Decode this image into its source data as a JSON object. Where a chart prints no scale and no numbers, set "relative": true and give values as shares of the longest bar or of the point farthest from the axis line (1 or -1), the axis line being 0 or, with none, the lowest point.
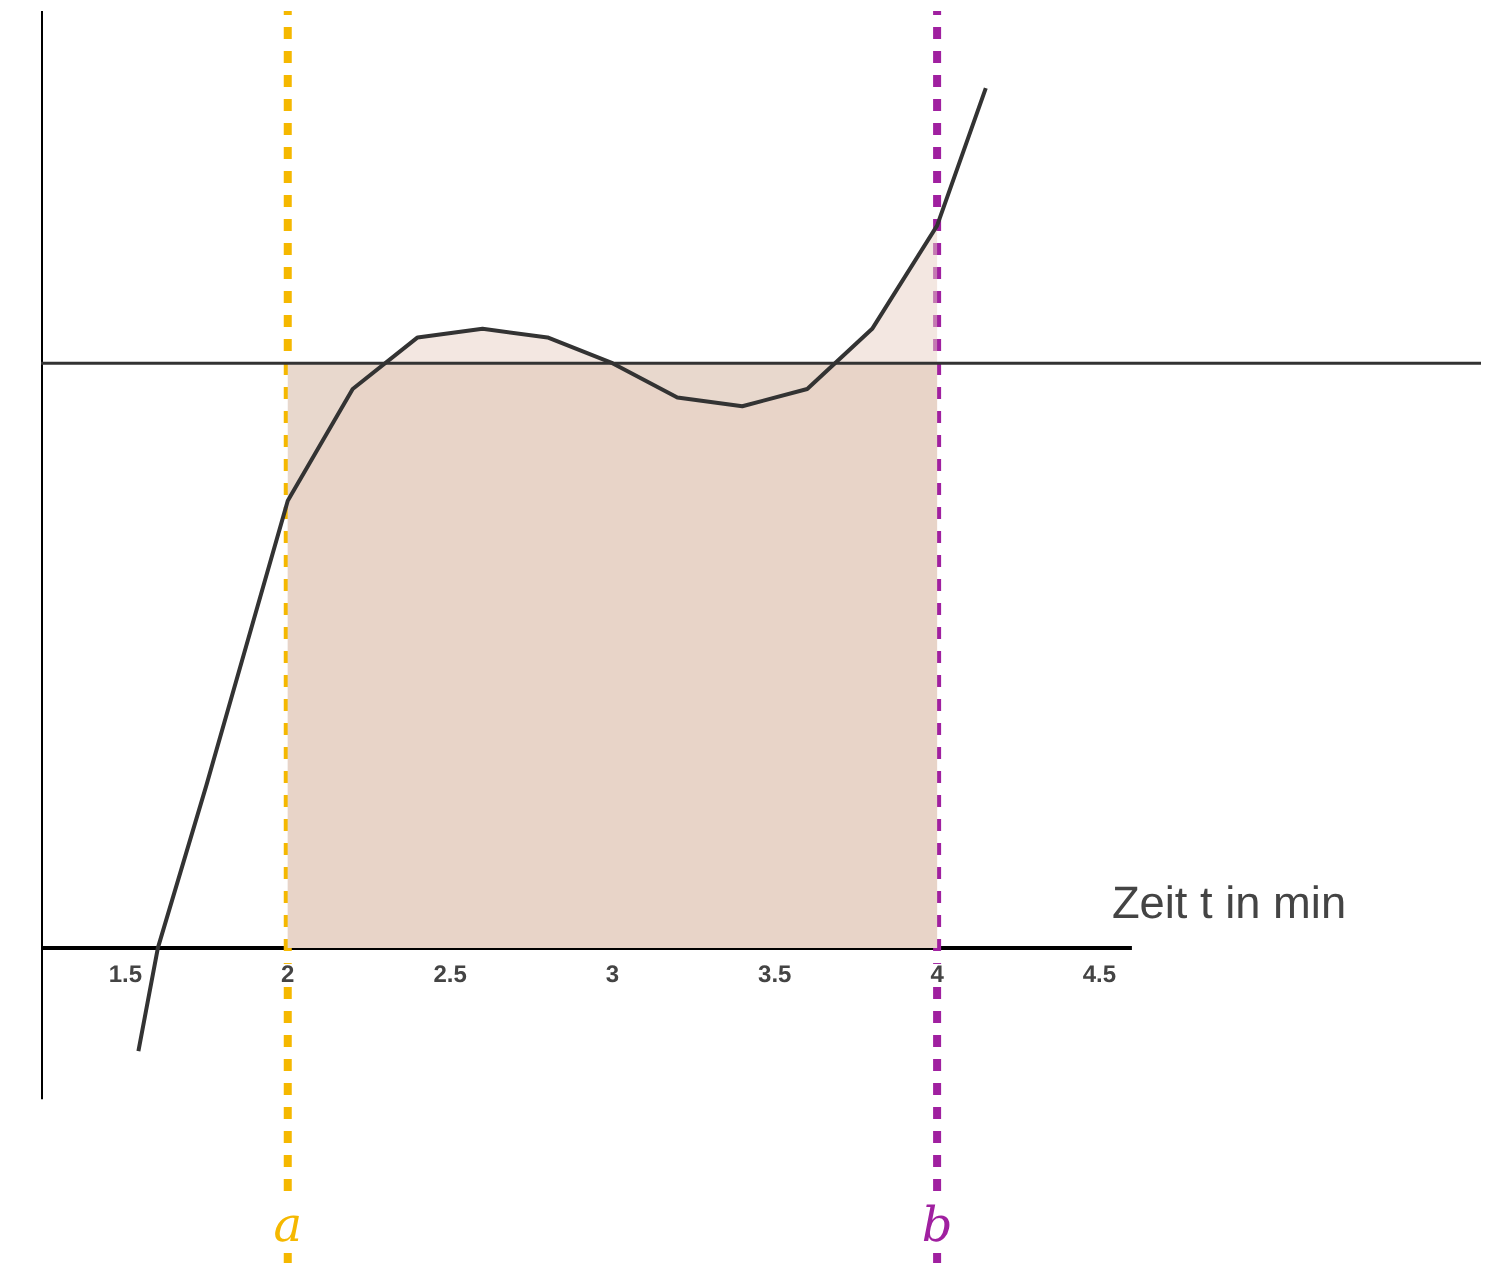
{
  "chart_data": {
    "type": "line",
    "relative": true,
    "xlabel": "Zeit t in min",
    "xlim": [
      1.24,
      4.6
    ],
    "xticks": [
      1.5,
      2,
      2.5,
      3,
      3.5,
      4,
      4.5
    ],
    "series": [
      {
        "type": "area",
        "color": "#e8d8cd",
        "x": [
          2,
          4
        ],
        "values": [
          0.68,
          0.68
        ]
      },
      {
        "type": "area",
        "color": "#e8d0c4",
        "x": [
          2.0,
          2.2,
          2.4,
          2.6,
          2.8,
          3.0,
          3.2,
          3.4,
          3.6,
          3.8,
          4.0
        ],
        "values": [
          0.52,
          0.65,
          0.71,
          0.72,
          0.71,
          0.68,
          0.64,
          0.63,
          0.65,
          0.72,
          0.84
        ]
      },
      {
        "color": "#333333",
        "x": [
          1.54,
          1.6,
          1.75,
          2.0,
          2.2,
          2.4,
          2.6,
          2.8,
          3.0,
          3.2,
          3.4,
          3.6,
          3.8,
          4.0,
          4.15
        ],
        "values": [
          -0.12,
          0,
          0.19,
          0.52,
          0.65,
          0.71,
          0.72,
          0.71,
          0.68,
          0.64,
          0.63,
          0.65,
          0.72,
          0.84,
          1.0
        ]
      }
    ],
    "ref_lines": [
      {
        "axis": "y",
        "value": 0.68,
        "color": "#333333",
        "line_style": "solid"
      },
      {
        "axis": "x",
        "value": 2,
        "label": "a",
        "color": "#f5b800",
        "line_style": "dashed"
      },
      {
        "axis": "x",
        "value": 4,
        "label": "b",
        "color": "#a020a0",
        "line_style": "dashed"
      }
    ],
    "grid": false,
    "marker": "none",
    "line_style": "solid"
  }
}
